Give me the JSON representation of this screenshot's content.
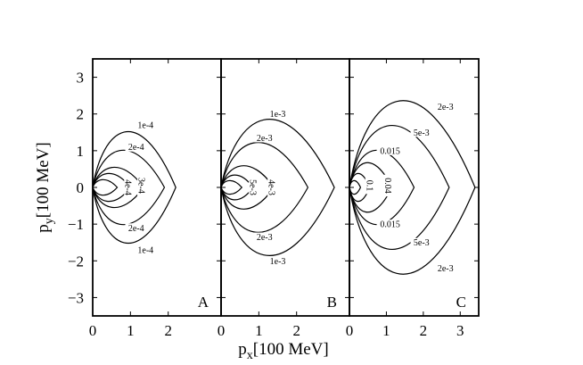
{
  "chart_data": {
    "type": "contour",
    "layout": "three panels side by side sharing y axis",
    "xlabel": {
      "main": "p",
      "sub": "x",
      "rest": "[100 MeV]"
    },
    "ylabel": {
      "main": "p",
      "sub": "y",
      "rest": "[100 MeV]"
    },
    "ylim": [
      -3.5,
      3.5
    ],
    "yticks": [
      3,
      2,
      1,
      0,
      -1,
      -2,
      -3
    ],
    "ytick_labels": [
      "3",
      "2",
      "1",
      "0",
      "−1",
      "−2",
      "−3"
    ],
    "grid": false,
    "panels": [
      {
        "letter": "A",
        "xlim": [
          0,
          3.4
        ],
        "xticks": [
          0,
          1,
          2
        ],
        "xtick_labels": [
          "0",
          "1",
          "2"
        ],
        "contours": [
          {
            "label": "1e-4",
            "extent_x": 2.2,
            "extent_y": 1.8,
            "label_x": 1.4,
            "label_y": 1.7,
            "lower_label_x": 1.4,
            "lower_label_y": -1.7
          },
          {
            "label": "2e-4",
            "extent_x": 1.9,
            "extent_y": 1.2,
            "label_x": 1.15,
            "label_y": 1.1,
            "lower_label_x": 1.15,
            "lower_label_y": -1.1
          },
          {
            "label": "3e-4",
            "extent_x": 1.35,
            "extent_y": 0.65,
            "label_x": 1.3,
            "label_y": 0.05
          },
          {
            "label": "4e-4",
            "extent_x": 1.0,
            "extent_y": 0.45,
            "label_x": 0.95,
            "label_y": 0.0
          },
          {
            "label": "",
            "extent_x": 0.65,
            "extent_y": 0.25
          }
        ]
      },
      {
        "letter": "B",
        "xlim": [
          0,
          3.4
        ],
        "xticks": [
          0,
          1,
          2
        ],
        "xtick_labels": [
          "0",
          "1",
          "2"
        ],
        "contours": [
          {
            "label": "1e-3",
            "extent_x": 3.0,
            "extent_y": 2.2,
            "label_x": 1.5,
            "label_y": 2.0,
            "lower_label_x": 1.5,
            "lower_label_y": -2.0
          },
          {
            "label": "2e-3",
            "extent_x": 2.3,
            "extent_y": 1.45,
            "label_x": 1.15,
            "label_y": 1.35,
            "lower_label_x": 1.15,
            "lower_label_y": -1.35
          },
          {
            "label": "4e-3",
            "extent_x": 1.4,
            "extent_y": 0.7,
            "label_x": 1.35,
            "label_y": 0.0
          },
          {
            "label": "5e-3",
            "extent_x": 0.85,
            "extent_y": 0.4,
            "label_x": 0.85,
            "label_y": 0.0
          },
          {
            "label": "",
            "extent_x": 0.55,
            "extent_y": 0.22
          }
        ]
      },
      {
        "letter": "C",
        "xlim": [
          0,
          3.5
        ],
        "xticks": [
          0,
          1,
          2,
          3
        ],
        "xtick_labels": [
          "0",
          "1",
          "2",
          "3"
        ],
        "contours": [
          {
            "label": "2e-3",
            "extent_x": 3.4,
            "extent_y": 2.8,
            "label_x": 2.6,
            "label_y": 2.2,
            "lower_label_x": 2.6,
            "lower_label_y": -2.2
          },
          {
            "label": "5e-3",
            "extent_x": 2.7,
            "extent_y": 2.0,
            "label_x": 1.95,
            "label_y": 1.5,
            "lower_label_x": 1.95,
            "lower_label_y": -1.5
          },
          {
            "label": "0.015",
            "extent_x": 1.75,
            "extent_y": 1.2,
            "label_x": 1.1,
            "label_y": 1.0,
            "lower_label_x": 1.1,
            "lower_label_y": -1.0
          },
          {
            "label": "0.04",
            "extent_x": 1.15,
            "extent_y": 0.8,
            "label_x": 1.05,
            "label_y": 0.05
          },
          {
            "label": "0.1",
            "extent_x": 0.55,
            "extent_y": 0.45,
            "label_x": 0.55,
            "label_y": 0.05
          },
          {
            "label": "",
            "extent_x": 0.3,
            "extent_y": 0.22
          }
        ]
      }
    ]
  }
}
